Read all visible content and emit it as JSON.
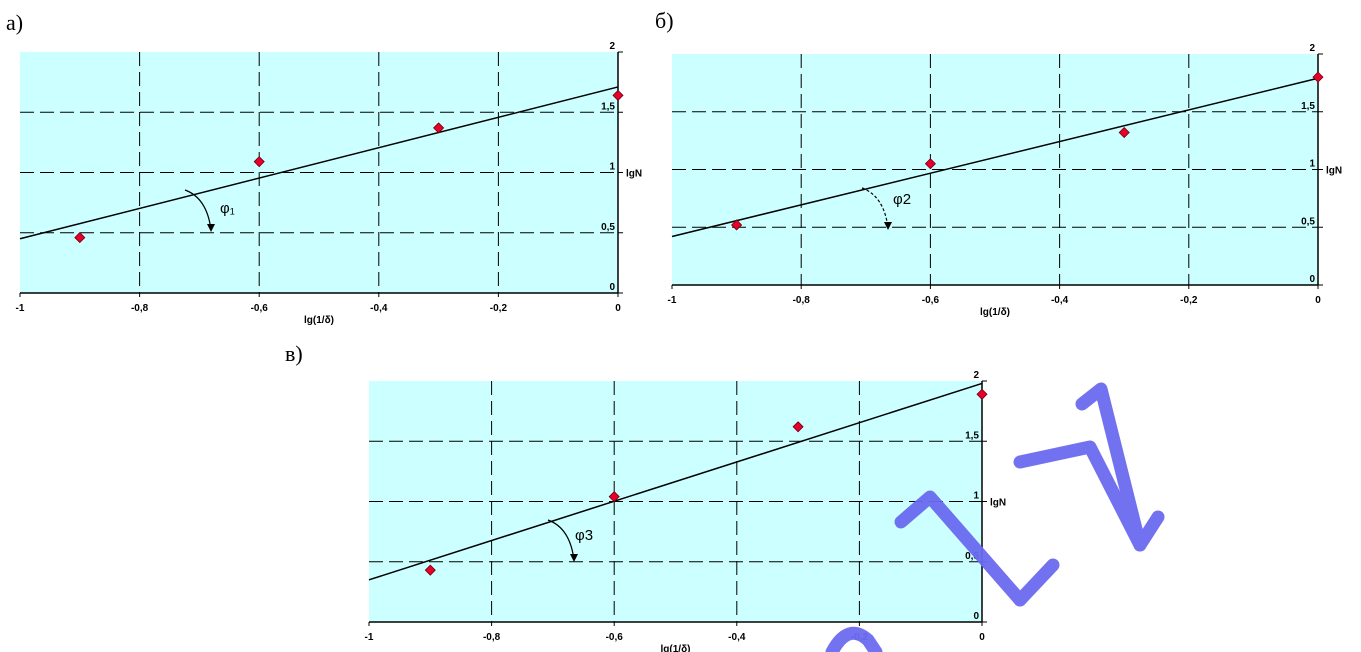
{
  "panels_shared": {
    "ylabel": "lgN",
    "xlabel": "lg(1/δ)",
    "xlim": [
      -1,
      0
    ],
    "ylim": [
      0,
      2
    ],
    "x_ticks": [
      "-1",
      "-0,8",
      "-0,6",
      "-0,4",
      "-0,2",
      "0"
    ],
    "y_ticks": [
      "0",
      "0,5",
      "1",
      "1,5",
      "2"
    ],
    "grid": true
  },
  "colors": {
    "plot_background": "#ccffff",
    "marker": "#e8002a",
    "line": "#000000",
    "watermark": "#6b6bf0"
  },
  "watermark_icon": "watermark-letters",
  "chart_data": [
    {
      "panel_label": "а)",
      "type": "scatter",
      "angle_label": "φ₁",
      "xlabel": "lg(1/δ)",
      "ylabel": "lgN",
      "xlim": [
        -1,
        0
      ],
      "ylim": [
        0,
        2
      ],
      "grid": true,
      "points": [
        {
          "x": -0.9,
          "y": 0.46
        },
        {
          "x": -0.6,
          "y": 1.09
        },
        {
          "x": -0.3,
          "y": 1.37
        },
        {
          "x": 0.0,
          "y": 1.64
        }
      ],
      "fit_line": {
        "x": [
          -1,
          0
        ],
        "y": [
          0.45,
          1.71
        ]
      }
    },
    {
      "panel_label": "б)",
      "type": "scatter",
      "angle_label": "φ2",
      "xlabel": "lg(1/δ)",
      "ylabel": "lgN",
      "xlim": [
        -1,
        0
      ],
      "ylim": [
        0,
        2
      ],
      "grid": true,
      "points": [
        {
          "x": -0.9,
          "y": 0.52
        },
        {
          "x": -0.6,
          "y": 1.05
        },
        {
          "x": -0.3,
          "y": 1.32
        },
        {
          "x": 0.0,
          "y": 1.8
        }
      ],
      "fit_line": {
        "x": [
          -1,
          0
        ],
        "y": [
          0.42,
          1.79
        ]
      }
    },
    {
      "panel_label": "в)",
      "type": "scatter",
      "angle_label": "φ3",
      "xlabel": "lg(1/δ)",
      "ylabel": "lgN",
      "xlim": [
        -1,
        0
      ],
      "ylim": [
        0,
        2
      ],
      "grid": true,
      "points": [
        {
          "x": -0.9,
          "y": 0.43
        },
        {
          "x": -0.6,
          "y": 1.04
        },
        {
          "x": -0.3,
          "y": 1.62
        },
        {
          "x": 0.0,
          "y": 1.89
        }
      ],
      "fit_line": {
        "x": [
          -1,
          0
        ],
        "y": [
          0.35,
          1.98
        ]
      }
    }
  ]
}
